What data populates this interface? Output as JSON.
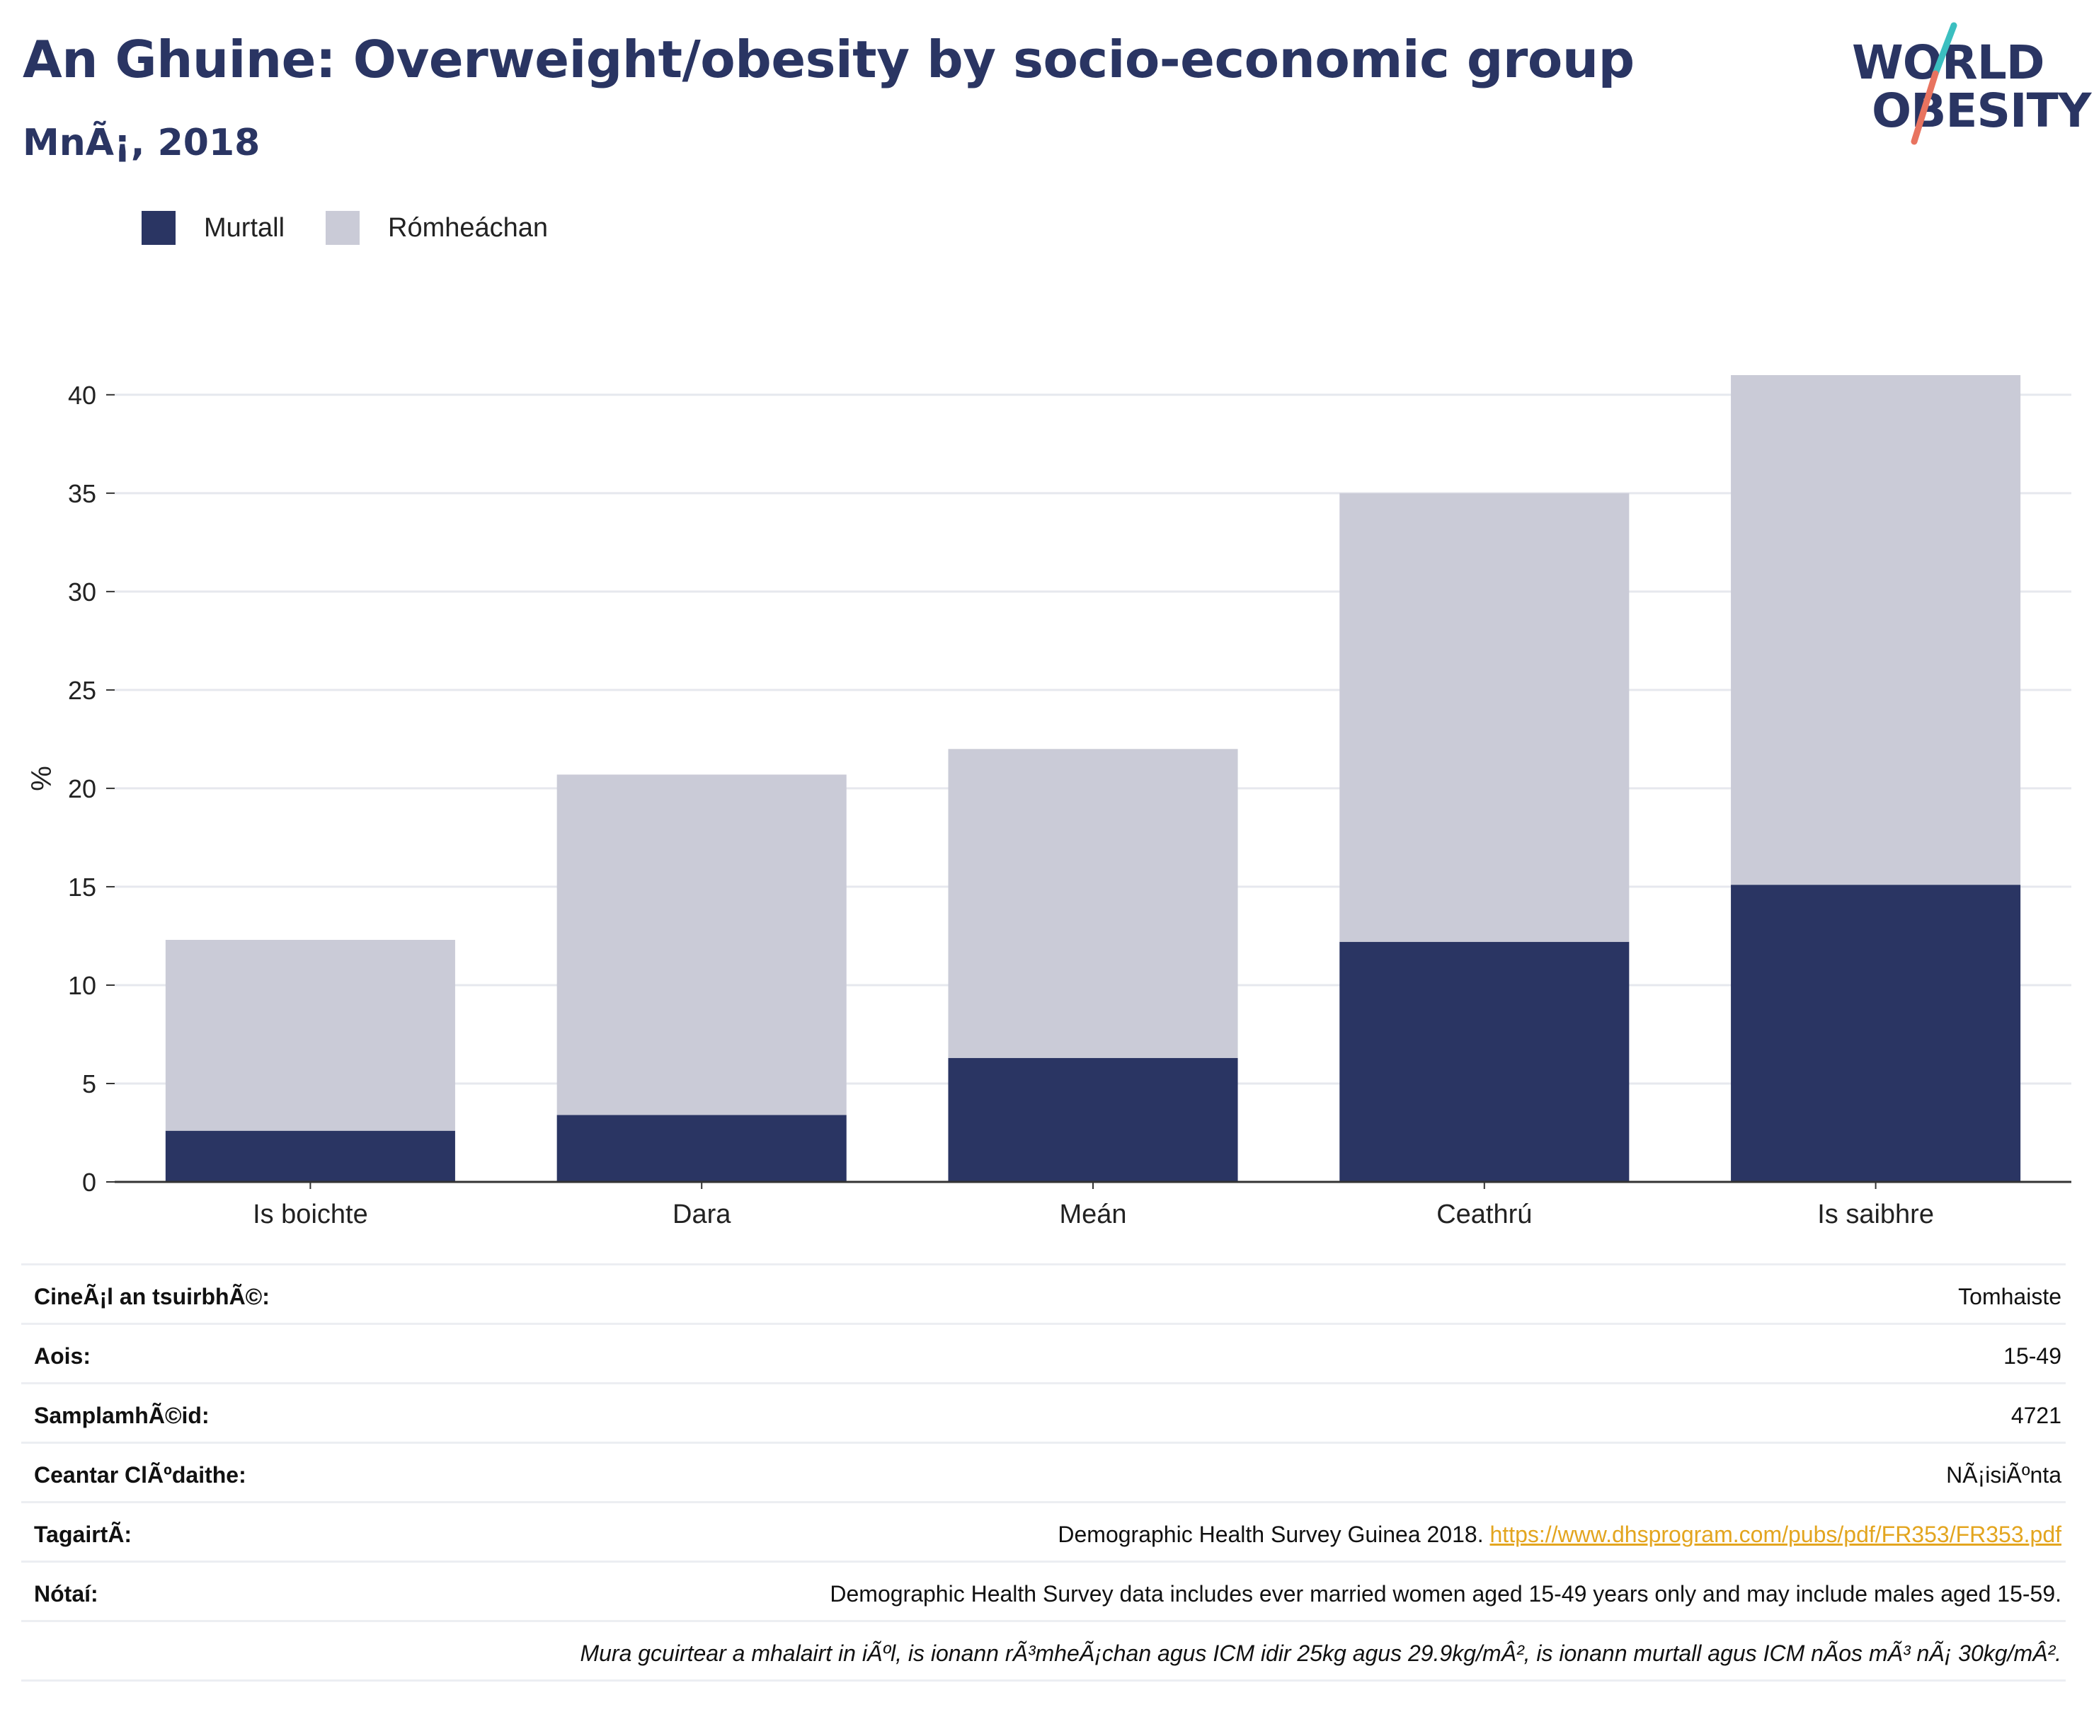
{
  "header": {
    "title": "An Ghuine: Overweight/obesity by socio-economic group",
    "subtitle": "MnÃ¡, 2018"
  },
  "logo": {
    "line1": "WORLD",
    "line2": "OBESITY",
    "slash_colors": [
      "#3bbfc0",
      "#e8735f"
    ]
  },
  "colors": {
    "murtall": "#2a3563",
    "romheachan": "#cacbd7",
    "axis": "#333333",
    "grid": "#e6e8ee",
    "link": "#e3a51f"
  },
  "legend": [
    {
      "label": "Murtall",
      "color": "#2a3563"
    },
    {
      "label": "Rómheáchan",
      "color": "#cacbd7"
    }
  ],
  "chart_data": {
    "type": "bar",
    "stacked": true,
    "categories": [
      "Is boichte",
      "Dara",
      "Meán",
      "Ceathrú",
      "Is saibhre"
    ],
    "series": [
      {
        "name": "Murtall",
        "values": [
          2.6,
          3.4,
          6.3,
          12.2,
          15.1
        ]
      },
      {
        "name": "Rómheáchan",
        "values": [
          9.7,
          17.3,
          15.7,
          22.8,
          25.9
        ]
      }
    ],
    "ylabel": "%",
    "ylim": [
      0,
      41
    ],
    "yticks": [
      0,
      5,
      10,
      15,
      20,
      25,
      30,
      35,
      40
    ],
    "grid": true,
    "legend_position": "top-left"
  },
  "info": [
    {
      "key": "CineÃ¡l an tsuirbhÃ©:",
      "value": "Tomhaiste"
    },
    {
      "key": "Aois:",
      "value": "15-49"
    },
    {
      "key": "SamplamhÃ©id:",
      "value": "4721"
    },
    {
      "key": "Ceantar ClÃºdaithe:",
      "value": "NÃ¡isiÃºnta"
    },
    {
      "key": "TagairtÃ:",
      "value": "Demographic Health Survey Guinea 2018.",
      "link": "https://www.dhsprogram.com/pubs/pdf/FR353/FR353.pdf"
    },
    {
      "key": "Nótaí:",
      "value": "Demographic Health Survey data includes ever married women aged 15-49 years only and may include males aged 15-59."
    },
    {
      "key": "",
      "value": "Mura gcuirtear a mhalairt in iÃºl, is ionann rÃ³mheÃ¡chan agus ICM idir 25kg agus 29.9kg/mÂ², is ionann murtall agus ICM nÃos mÃ³ nÃ¡ 30kg/mÂ²."
    }
  ]
}
